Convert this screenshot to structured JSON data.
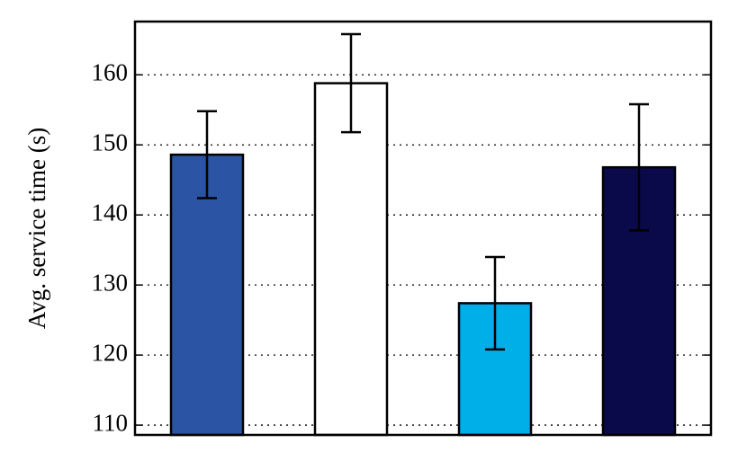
{
  "chart_data": {
    "type": "bar",
    "y_label": "Avg. service time (s)",
    "categories": [
      null,
      null,
      null,
      null
    ],
    "values": [
      148.6,
      158.8,
      127.4,
      146.8
    ],
    "errors": [
      6.2,
      7.0,
      6.6,
      9.0
    ],
    "colors": [
      "#2b55a4",
      "#ffffff",
      "#00aee8",
      "#0a0a4a"
    ],
    "ylim": [
      108.6,
      167.6
    ],
    "yticks": [
      110,
      120,
      130,
      140,
      150,
      160
    ],
    "grid": true
  }
}
